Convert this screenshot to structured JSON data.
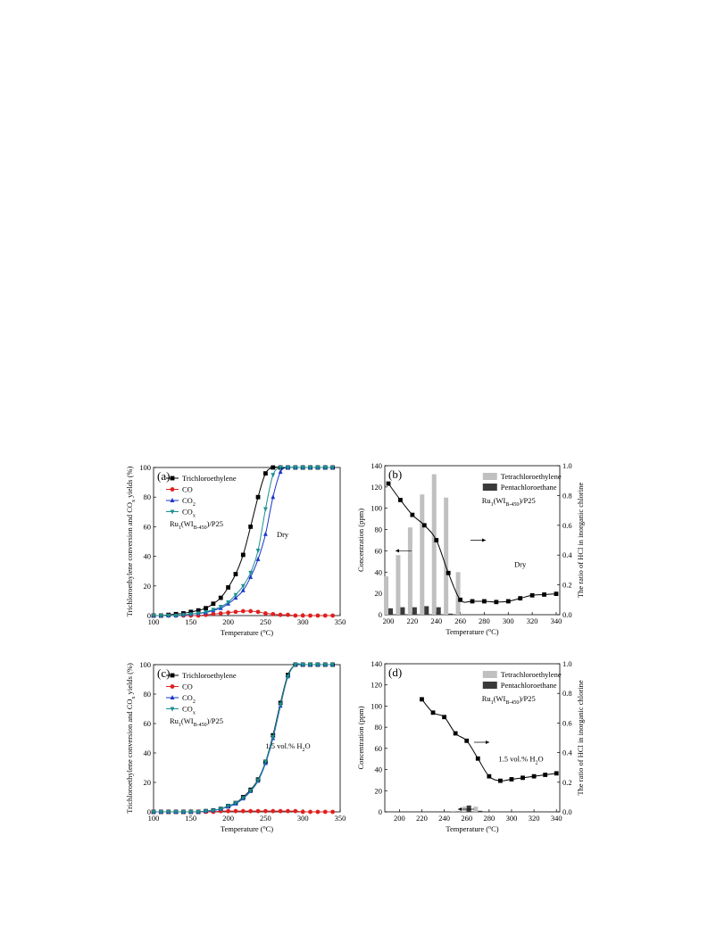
{
  "chart_data": [
    {
      "panel": "(a)",
      "type": "line",
      "xlabel": "Temperature (°C)",
      "ylabel": "Trichloroethylene conversion and COx yields (%)",
      "xlim": [
        100,
        350
      ],
      "ylim": [
        0,
        100
      ],
      "xticks": [
        100,
        150,
        200,
        250,
        300,
        350
      ],
      "yticks": [
        0,
        20,
        40,
        60,
        80,
        100
      ],
      "condition": "Dry",
      "catalyst": "Ru1(WI_B-450)/P25",
      "legend_position": "top-left",
      "series": [
        {
          "name": "Trichloroethylene",
          "marker": "square",
          "color": "#000000",
          "x": [
            100,
            110,
            120,
            130,
            140,
            150,
            160,
            170,
            180,
            190,
            200,
            210,
            220,
            230,
            240,
            250,
            260,
            270,
            280,
            290,
            300,
            310,
            320,
            330,
            340
          ],
          "y": [
            0,
            0,
            0.5,
            1,
            1.5,
            2.5,
            3.5,
            5,
            8,
            12,
            19,
            28,
            41,
            60,
            80,
            96,
            100,
            100,
            100,
            100,
            100,
            100,
            100,
            100,
            100
          ]
        },
        {
          "name": "CO",
          "marker": "circle",
          "color": "#e02020",
          "x": [
            100,
            110,
            120,
            130,
            140,
            150,
            160,
            170,
            180,
            190,
            200,
            210,
            220,
            230,
            240,
            250,
            260,
            270,
            280,
            290,
            300,
            310,
            320,
            330,
            340
          ],
          "y": [
            0,
            0,
            0,
            0,
            0,
            0,
            0,
            0.5,
            1,
            1.5,
            2,
            2.5,
            3,
            3,
            2.5,
            1.5,
            1,
            0.5,
            0.5,
            0,
            0,
            0,
            0,
            0,
            0
          ]
        },
        {
          "name": "CO2",
          "marker": "triangle-up",
          "color": "#1a35c8",
          "x": [
            100,
            110,
            120,
            130,
            140,
            150,
            160,
            170,
            180,
            190,
            200,
            210,
            220,
            230,
            240,
            250,
            260,
            270,
            280,
            290,
            300,
            310,
            320,
            330,
            340
          ],
          "y": [
            0,
            0,
            0,
            0,
            0.5,
            1,
            1.5,
            2,
            3.5,
            5,
            8,
            12,
            17,
            26,
            38,
            55,
            80,
            97,
            100,
            100,
            100,
            100,
            100,
            100,
            100
          ]
        },
        {
          "name": "COx",
          "marker": "triangle-down",
          "color": "#1a9090",
          "x": [
            100,
            110,
            120,
            130,
            140,
            150,
            160,
            170,
            180,
            190,
            200,
            210,
            220,
            230,
            240,
            250,
            260,
            270,
            280,
            290,
            300,
            310,
            320,
            330,
            340
          ],
          "y": [
            0,
            0,
            0,
            0,
            0.5,
            1,
            1.5,
            2.5,
            4,
            6,
            9,
            14,
            20,
            29,
            44,
            72,
            95,
            100,
            100,
            100,
            100,
            100,
            100,
            100,
            100
          ]
        }
      ]
    },
    {
      "panel": "(b)",
      "type": "bar+line",
      "xlabel": "Temperature (°C)",
      "ylabel": "Concentration (ppm)",
      "y2label": "The ratio of HCl in inorganic chlorine",
      "xlim": [
        197,
        343
      ],
      "ylim": [
        0,
        140
      ],
      "y2lim": [
        0,
        1.0
      ],
      "xticks": [
        200,
        220,
        240,
        260,
        280,
        300,
        320,
        340
      ],
      "yticks": [
        0,
        20,
        40,
        60,
        80,
        100,
        120,
        140
      ],
      "y2ticks": [
        0.0,
        0.2,
        0.4,
        0.6,
        0.8,
        1.0
      ],
      "condition": "Dry",
      "catalyst": "Ru1(WI_B-450)/P25",
      "legend_position": "top-right",
      "bar_categories": [
        200,
        210,
        220,
        230,
        240,
        250,
        260
      ],
      "bar_series": [
        {
          "name": "Tetrachloroethylene",
          "color": "#c0c0c0",
          "values": [
            36,
            56,
            82,
            113,
            132,
            110,
            40
          ]
        },
        {
          "name": "Pentachloroethane",
          "color": "#3a3a3a",
          "values": [
            6,
            7,
            7,
            8,
            7,
            1,
            0
          ]
        }
      ],
      "line_series": {
        "axis": "right",
        "marker": "square",
        "color": "#000000",
        "x": [
          200,
          210,
          220,
          230,
          240,
          250,
          260,
          270,
          280,
          290,
          300,
          310,
          320,
          330,
          340
        ],
        "y": [
          0.88,
          0.77,
          0.67,
          0.6,
          0.5,
          0.28,
          0.1,
          0.09,
          0.09,
          0.085,
          0.09,
          0.11,
          0.13,
          0.135,
          0.14
        ]
      }
    },
    {
      "panel": "(c)",
      "type": "line",
      "xlabel": "Temperature (°C)",
      "ylabel": "Trichloroethylene conversion and COx yields (%)",
      "xlim": [
        100,
        350
      ],
      "ylim": [
        0,
        100
      ],
      "xticks": [
        100,
        150,
        200,
        250,
        300,
        350
      ],
      "yticks": [
        0,
        20,
        40,
        60,
        80,
        100
      ],
      "condition": "1.5 vol.% H2O",
      "catalyst": "Ru1(WI_B-450)/P25",
      "legend_position": "top-left",
      "series": [
        {
          "name": "Trichloroethylene",
          "marker": "square",
          "color": "#000000",
          "x": [
            100,
            110,
            120,
            130,
            140,
            150,
            160,
            170,
            180,
            190,
            200,
            210,
            220,
            230,
            240,
            250,
            260,
            270,
            280,
            290,
            300,
            310,
            320,
            330,
            340
          ],
          "y": [
            0,
            0,
            0,
            0,
            0,
            0,
            0,
            0.5,
            1,
            2,
            4,
            6,
            10,
            15,
            22,
            34,
            52,
            74,
            93,
            100,
            100,
            100,
            100,
            100,
            100
          ]
        },
        {
          "name": "CO",
          "marker": "circle",
          "color": "#e02020",
          "x": [
            100,
            110,
            120,
            130,
            140,
            150,
            160,
            170,
            180,
            190,
            200,
            210,
            220,
            230,
            240,
            250,
            260,
            270,
            280,
            290,
            300,
            310,
            320,
            330,
            340
          ],
          "y": [
            0,
            0,
            0,
            0,
            0,
            0,
            0,
            0,
            0,
            0.5,
            0.5,
            0.5,
            0.5,
            0.5,
            0.5,
            0.5,
            0.5,
            0.5,
            0.5,
            0.5,
            0,
            0,
            0,
            0,
            0
          ]
        },
        {
          "name": "CO2",
          "marker": "triangle-up",
          "color": "#1a35c8",
          "x": [
            100,
            110,
            120,
            130,
            140,
            150,
            160,
            170,
            180,
            190,
            200,
            210,
            220,
            230,
            240,
            250,
            260,
            270,
            280,
            290,
            300,
            310,
            320,
            330,
            340
          ],
          "y": [
            0,
            0,
            0,
            0,
            0,
            0,
            0,
            0.5,
            1,
            2,
            3.5,
            5.5,
            9,
            14,
            21,
            33,
            50,
            72,
            92,
            100,
            100,
            100,
            100,
            100,
            100
          ]
        },
        {
          "name": "COx",
          "marker": "triangle-down",
          "color": "#1a9090",
          "x": [
            100,
            110,
            120,
            130,
            140,
            150,
            160,
            170,
            180,
            190,
            200,
            210,
            220,
            230,
            240,
            250,
            260,
            270,
            280,
            290,
            300,
            310,
            320,
            330,
            340
          ],
          "y": [
            0,
            0,
            0,
            0,
            0,
            0,
            0,
            0.5,
            1,
            2,
            4,
            6,
            9.5,
            14.5,
            21.5,
            34,
            51,
            73,
            92,
            100,
            100,
            100,
            100,
            100,
            100
          ]
        }
      ]
    },
    {
      "panel": "(d)",
      "type": "bar+line",
      "xlabel": "Temperature (°C)",
      "ylabel": "Concentration (ppm)",
      "y2label": "The ratio of HCl in inorganic chlorine",
      "xlim": [
        187,
        343
      ],
      "ylim": [
        0,
        140
      ],
      "y2lim": [
        0,
        1.0
      ],
      "xticks": [
        200,
        220,
        240,
        260,
        280,
        300,
        320,
        340
      ],
      "yticks": [
        0,
        20,
        40,
        60,
        80,
        100,
        120,
        140
      ],
      "y2ticks": [
        0.0,
        0.2,
        0.4,
        0.6,
        0.8,
        1.0
      ],
      "condition": "1.5 vol.% H2O",
      "catalyst": "Ru1(WI_B-450)/P25",
      "legend_position": "top-right",
      "bar_categories": [
        250,
        260,
        270
      ],
      "bar_series": [
        {
          "name": "Tetrachloroethylene",
          "color": "#c0c0c0",
          "values": [
            1,
            5,
            5
          ]
        },
        {
          "name": "Pentachloroethane",
          "color": "#3a3a3a",
          "values": [
            0,
            6,
            1
          ]
        }
      ],
      "line_series": {
        "axis": "right",
        "marker": "square",
        "color": "#000000",
        "x": [
          220,
          230,
          240,
          250,
          260,
          270,
          280,
          290,
          300,
          310,
          320,
          330,
          340
        ],
        "y": [
          0.76,
          0.67,
          0.64,
          0.53,
          0.48,
          0.36,
          0.24,
          0.21,
          0.22,
          0.23,
          0.24,
          0.25,
          0.26
        ]
      }
    }
  ]
}
